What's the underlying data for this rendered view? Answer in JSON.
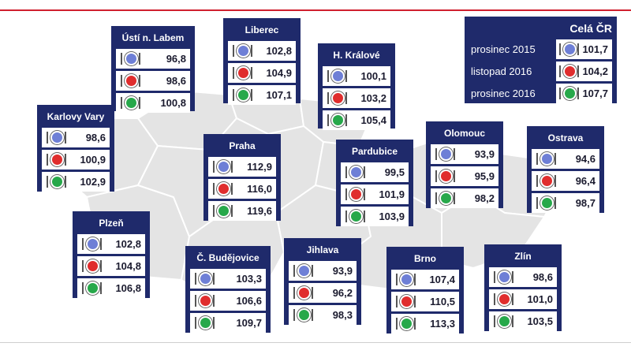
{
  "colors": {
    "box": "#1f2a6b",
    "accent_line": "#d0202e",
    "blue": "#6e7fd6",
    "red": "#e02d2d",
    "green": "#27a84a"
  },
  "icons": [
    "plate-blue-icon",
    "plate-red-icon",
    "plate-green-icon"
  ],
  "legend": {
    "title": "Celá ČR",
    "rows": [
      {
        "label": "prosinec 2015",
        "value": "101,7"
      },
      {
        "label": "listopad 2016",
        "value": "104,2"
      },
      {
        "label": "prosinec 2016",
        "value": "107,7"
      }
    ]
  },
  "regions": [
    {
      "name": "Ústí n. Labem",
      "values": [
        "96,8",
        "98,6",
        "100,8"
      ]
    },
    {
      "name": "Liberec",
      "values": [
        "102,8",
        "104,9",
        "107,1"
      ]
    },
    {
      "name": "H. Králové",
      "values": [
        "100,1",
        "103,2",
        "105,4"
      ]
    },
    {
      "name": "Karlovy Vary",
      "values": [
        "98,6",
        "100,9",
        "102,9"
      ]
    },
    {
      "name": "Praha",
      "values": [
        "112,9",
        "116,0",
        "119,6"
      ]
    },
    {
      "name": "Pardubice",
      "values": [
        "99,5",
        "101,9",
        "103,9"
      ]
    },
    {
      "name": "Olomouc",
      "values": [
        "93,9",
        "95,9",
        "98,2"
      ]
    },
    {
      "name": "Ostrava",
      "values": [
        "94,6",
        "96,4",
        "98,7"
      ]
    },
    {
      "name": "Plzeň",
      "values": [
        "102,8",
        "104,8",
        "106,8"
      ]
    },
    {
      "name": "Č. Budějovice",
      "values": [
        "103,3",
        "106,6",
        "109,7"
      ]
    },
    {
      "name": "Jihlava",
      "values": [
        "93,9",
        "96,2",
        "98,3"
      ]
    },
    {
      "name": "Brno",
      "values": [
        "107,4",
        "110,5",
        "113,3"
      ]
    },
    {
      "name": "Zlín",
      "values": [
        "98,6",
        "101,0",
        "103,5"
      ]
    }
  ]
}
